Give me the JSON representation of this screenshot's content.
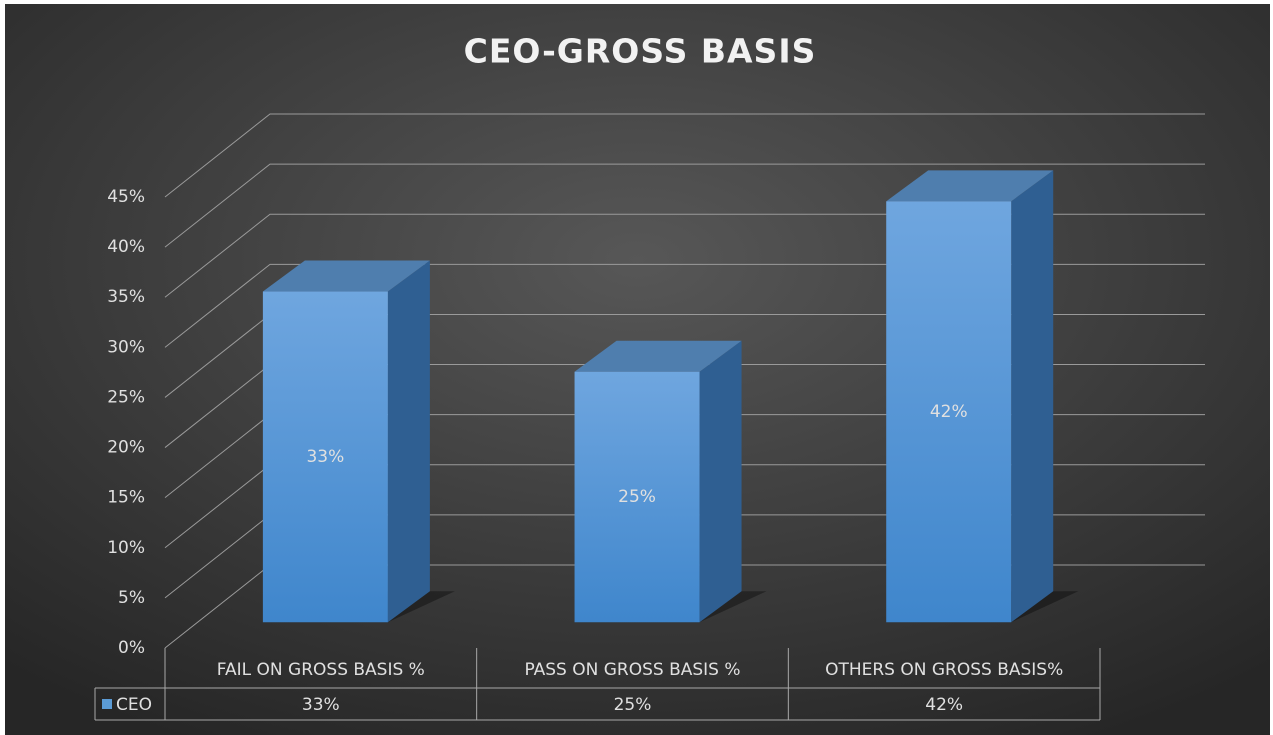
{
  "chart_data": {
    "type": "bar3d",
    "title": "CEO-GROSS BASIS",
    "categories": [
      "FAIL ON GROSS BASIS %",
      "PASS ON GROSS BASIS %",
      "OTHERS ON GROSS BASIS%"
    ],
    "series": [
      {
        "name": "CEO",
        "color": "#5b9bd5",
        "values": [
          33,
          25,
          42
        ],
        "value_labels": [
          "33%",
          "25%",
          "42%"
        ]
      }
    ],
    "ylim": [
      0,
      45
    ],
    "yticks": [
      {
        "value": 0,
        "label": "0%"
      },
      {
        "value": 5,
        "label": "5%"
      },
      {
        "value": 10,
        "label": "10%"
      },
      {
        "value": 15,
        "label": "15%"
      },
      {
        "value": 20,
        "label": "20%"
      },
      {
        "value": 25,
        "label": "25%"
      },
      {
        "value": 30,
        "label": "30%"
      },
      {
        "value": 35,
        "label": "35%"
      },
      {
        "value": 40,
        "label": "40%"
      },
      {
        "value": 45,
        "label": "45%"
      }
    ],
    "grid": true,
    "data_table": true
  }
}
